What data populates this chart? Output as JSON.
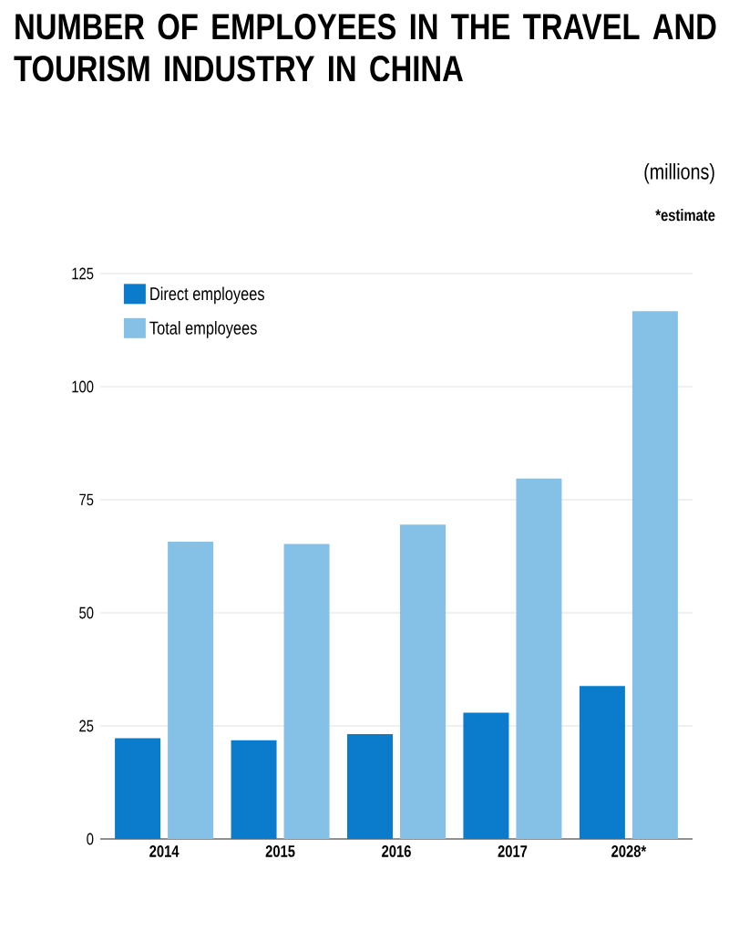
{
  "chart_data": {
    "type": "bar",
    "title": "NUMBER OF EMPLOYEES IN THE TRAVEL AND TOURISM INDUSTRY IN CHINA",
    "ylabel": "(millions)",
    "annotations": [
      "*estimate"
    ],
    "categories": [
      "2014",
      "2015",
      "2016",
      "2017",
      "2028*"
    ],
    "series": [
      {
        "name": "Direct employees",
        "color": "#0a7ccb",
        "values": [
          22.3,
          21.8,
          23.2,
          27.9,
          33.8
        ]
      },
      {
        "name": "Total employees",
        "color": "#85c1e6",
        "values": [
          65.7,
          65.2,
          69.5,
          79.7,
          116.7
        ]
      }
    ],
    "ylim": [
      0,
      125
    ],
    "yticks": [
      0,
      25,
      50,
      75,
      100,
      125
    ],
    "grid": "y",
    "legend": "top left"
  }
}
